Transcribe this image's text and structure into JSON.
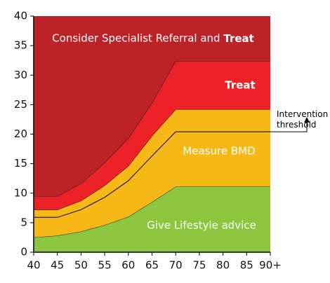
{
  "chart_data": {
    "type": "stacked_area",
    "x": [
      40,
      45,
      50,
      55,
      60,
      65,
      70,
      75,
      80,
      85,
      90
    ],
    "xlim": [
      40,
      90
    ],
    "xticks": [
      40,
      45,
      50,
      55,
      60,
      65,
      70,
      75,
      80,
      85,
      {
        "value": 90,
        "label": "90+"
      }
    ],
    "ylim": [
      0,
      40
    ],
    "yticks": [
      0,
      5,
      10,
      15,
      20,
      25,
      30,
      35,
      40
    ],
    "series": [
      {
        "name": "Give Lifestyle advice",
        "color": "#8cc63f",
        "values": [
          2.5,
          2.8,
          3.5,
          4.6,
          6.0,
          8.5,
          11.1,
          11.1,
          11.1,
          11.1,
          11.1
        ]
      },
      {
        "name": "Measure BMD",
        "color": "#f6b817",
        "values": [
          4.7,
          4.4,
          5.2,
          6.7,
          8.6,
          11.2,
          13.1,
          13.1,
          13.1,
          13.1,
          13.1
        ]
      },
      {
        "name": "Treat",
        "color": "#ec2227",
        "values": [
          2.3,
          2.3,
          2.9,
          3.9,
          4.7,
          5.6,
          8.2,
          8.2,
          8.2,
          8.2,
          8.2
        ]
      },
      {
        "name": "Consider Specialist Referral and Treat",
        "color": "#be2229",
        "values": [
          30.5,
          30.5,
          28.4,
          24.8,
          20.7,
          14.7,
          7.6,
          7.6,
          7.6,
          7.6,
          7.6
        ]
      }
    ],
    "threshold": {
      "name": "Intervention threshold",
      "color": "#000000",
      "values": [
        5.9,
        5.9,
        7.2,
        9.3,
        12.1,
        16.3,
        20.4,
        20.4,
        20.4,
        20.4,
        20.4
      ]
    }
  }
}
